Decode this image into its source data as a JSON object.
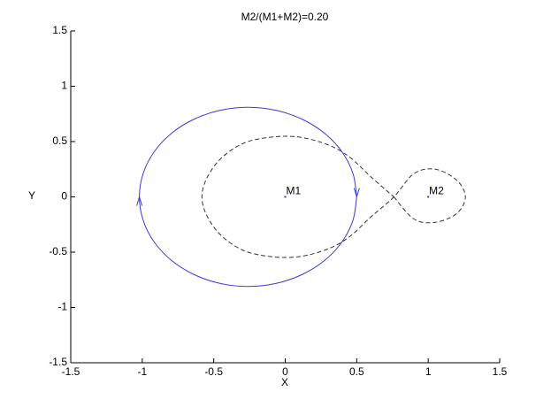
{
  "chart_data": {
    "type": "line",
    "title": "M2/(M1+M2)=0.20",
    "x_label": "X",
    "y_label": "Y",
    "xlim": [
      -1.5,
      1.5
    ],
    "ylim": [
      -1.5,
      1.5
    ],
    "xticks": [
      -1.5,
      -1,
      -0.5,
      0,
      0.5,
      1,
      1.5
    ],
    "yticks": [
      -1.5,
      -1,
      -0.5,
      0,
      0.5,
      1,
      1.5
    ],
    "series": [
      {
        "color": "#3a3ad8",
        "dash": false,
        "x": [
          0.5,
          0.474,
          0.398,
          0.277,
          0.12,
          -0.063,
          -0.26,
          -0.457,
          -0.64,
          -0.797,
          -0.918,
          -0.994,
          -1.02,
          -0.994,
          -0.918,
          -0.797,
          -0.64,
          -0.457,
          -0.26,
          -0.063,
          0.12,
          0.277,
          0.398,
          0.474,
          0.5
        ],
        "y": [
          0,
          0.21,
          0.405,
          0.573,
          0.701,
          0.782,
          0.81,
          0.782,
          0.701,
          0.573,
          0.405,
          0.21,
          0,
          -0.21,
          -0.405,
          -0.573,
          -0.701,
          -0.782,
          -0.81,
          -0.782,
          -0.701,
          -0.573,
          -0.405,
          -0.21,
          0
        ]
      },
      {
        "color": "#333333",
        "dash": true,
        "x": [
          0.76,
          0.9,
          1.05,
          1.2,
          1.26,
          1.2,
          1.05,
          0.9,
          0.76,
          0.6,
          0.45,
          0.3,
          0.1,
          -0.1,
          -0.3,
          -0.47,
          -0.57,
          -0.57,
          -0.47,
          -0.3,
          -0.1,
          0.1,
          0.3,
          0.45,
          0.6,
          0.76
        ],
        "y": [
          0,
          -0.2,
          -0.23,
          -0.15,
          0,
          0.15,
          0.25,
          0.21,
          0,
          -0.18,
          -0.36,
          -0.47,
          -0.54,
          -0.54,
          -0.48,
          -0.32,
          -0.1,
          0.1,
          0.32,
          0.48,
          0.54,
          0.54,
          0.47,
          0.36,
          0.18,
          0
        ]
      }
    ],
    "points": [
      {
        "name": "M1",
        "x": 0,
        "y": 0,
        "color": "#3a3ad8"
      },
      {
        "name": "M2",
        "x": 1,
        "y": 0,
        "color": "#3a3ad8"
      }
    ]
  }
}
